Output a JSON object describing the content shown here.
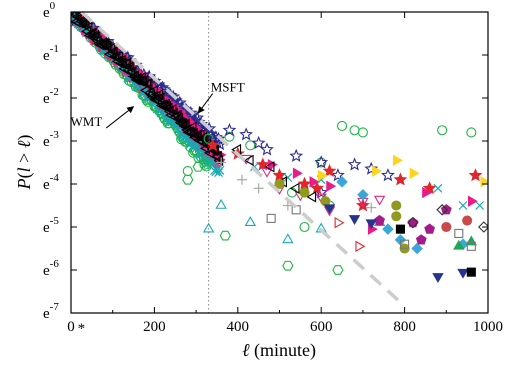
{
  "chart_data": {
    "type": "scatter",
    "x_axis": {
      "label_parts": [
        "ℓ",
        " (minute)"
      ],
      "range": [
        0,
        1000
      ],
      "ticks": [
        {
          "value": 0,
          "label": "0"
        },
        {
          "value": 200,
          "label": "200"
        },
        {
          "value": 400,
          "label": "400"
        },
        {
          "value": 600,
          "label": "600"
        },
        {
          "value": 800,
          "label": "800"
        },
        {
          "value": 1000,
          "label": "1000"
        }
      ],
      "special_marker": {
        "value": 25,
        "label": "*"
      }
    },
    "y_axis": {
      "label_parts": [
        "P",
        "(",
        "l",
        " > ",
        "ℓ",
        ")"
      ],
      "scale": "log_e",
      "range_exponent": [
        -7,
        0
      ],
      "ticks": [
        {
          "exponent": 0,
          "base": "e",
          "sup": "0"
        },
        {
          "exponent": -1,
          "base": "e",
          "sup": "-1"
        },
        {
          "exponent": -2,
          "base": "e",
          "sup": "-2"
        },
        {
          "exponent": -3,
          "base": "e",
          "sup": "-3"
        },
        {
          "exponent": -4,
          "base": "e",
          "sup": "-4"
        },
        {
          "exponent": -5,
          "base": "e",
          "sup": "-5"
        },
        {
          "exponent": -6,
          "base": "e",
          "sup": "-6"
        },
        {
          "exponent": -7,
          "base": "e",
          "sup": "-7"
        }
      ]
    },
    "vertical_line": {
      "x": 330,
      "style": "dotted",
      "color": "#888888"
    },
    "annotations": [
      {
        "text": "MSFT",
        "x": 335,
        "y_exp": -1.85,
        "arrow_to": {
          "x": 305,
          "y_exp": -2.35
        }
      },
      {
        "text": "WMT",
        "x": 75,
        "y_exp": -2.65,
        "arrow_to": {
          "x": 150,
          "y_exp": -2.2
        }
      }
    ],
    "fit_line": {
      "description": "exponential fit",
      "style": "dashed",
      "color": "#cccccc",
      "points": [
        {
          "x": 25,
          "y_exp": 0
        },
        {
          "x": 790,
          "y_exp": -6.75
        }
      ]
    },
    "series": [
      {
        "color": "#1fb544",
        "marker": "circle-open",
        "head_slope": -0.0108,
        "points": [
          [
            330,
            -2.95
          ],
          [
            380,
            -2.9
          ],
          [
            430,
            -3.1
          ],
          [
            650,
            -2.65
          ],
          [
            680,
            -2.75
          ],
          [
            700,
            -2.8
          ],
          [
            890,
            -2.75
          ],
          [
            960,
            -2.8
          ],
          [
            600,
            -3.5
          ],
          [
            530,
            -4.2
          ],
          [
            620,
            -4.5
          ],
          [
            560,
            -5.0
          ],
          [
            320,
            -3.55
          ],
          [
            280,
            -3.7
          ]
        ]
      },
      {
        "color": "#1fb544",
        "marker": "hexagon-open",
        "points": [
          [
            305,
            -3.6
          ],
          [
            370,
            -5.2
          ],
          [
            520,
            -5.9
          ],
          [
            640,
            -6.0
          ],
          [
            280,
            -3.9
          ]
        ]
      },
      {
        "color": "#29288f",
        "marker": "star-open",
        "head_slope": -0.0085,
        "points": [
          [
            380,
            -2.75
          ],
          [
            420,
            -2.85
          ],
          [
            450,
            -3.05
          ],
          [
            470,
            -3.2
          ],
          [
            540,
            -3.35
          ],
          [
            600,
            -3.5
          ],
          [
            640,
            -3.8
          ],
          [
            680,
            -3.55
          ],
          [
            720,
            -3.65
          ],
          [
            760,
            -3.8
          ],
          [
            600,
            -4.2
          ]
        ]
      },
      {
        "color": "#e0262b",
        "marker": "star-filled",
        "head_slope": -0.0095,
        "points": [
          [
            340,
            -3.1
          ],
          [
            400,
            -3.3
          ],
          [
            460,
            -3.55
          ],
          [
            500,
            -3.8
          ],
          [
            560,
            -4.0
          ],
          [
            590,
            -4.1
          ],
          [
            620,
            -3.7
          ],
          [
            700,
            -4.5
          ],
          [
            790,
            -3.9
          ],
          [
            860,
            -4.1
          ],
          [
            970,
            -3.8
          ]
        ]
      },
      {
        "color": "#d42c8a",
        "marker": "triangle-down-open",
        "head_slope": -0.01,
        "points": [
          [
            420,
            -3.4
          ],
          [
            470,
            -3.7
          ],
          [
            500,
            -4.1
          ],
          [
            550,
            -4.25
          ],
          [
            600,
            -4.3
          ],
          [
            700,
            -4.4
          ],
          [
            740,
            -4.35
          ],
          [
            620,
            -4.6
          ]
        ]
      },
      {
        "color": "#e81d88",
        "marker": "triangle-right-filled",
        "head_slope": -0.0093,
        "points": [
          [
            480,
            -3.55
          ],
          [
            540,
            -3.75
          ],
          [
            580,
            -3.95
          ],
          [
            620,
            -4.05
          ],
          [
            850,
            -4.2
          ],
          [
            960,
            -4.4
          ],
          [
            720,
            -5.05
          ]
        ]
      },
      {
        "color": "#1aa9b1",
        "marker": "x",
        "head_slope": -0.0105,
        "points": [
          [
            440,
            -3.6
          ],
          [
            520,
            -3.85
          ],
          [
            600,
            -3.9
          ],
          [
            880,
            -4.1
          ],
          [
            940,
            -4.5
          ],
          [
            980,
            -4.5
          ]
        ]
      },
      {
        "color": "#1aa9b1",
        "marker": "triangle-up-open",
        "points": [
          [
            360,
            -4.5
          ],
          [
            430,
            -4.9
          ],
          [
            600,
            -5.05
          ],
          [
            330,
            -5.05
          ],
          [
            520,
            -5.3
          ],
          [
            740,
            -4.9
          ]
        ]
      },
      {
        "color": "#000000",
        "marker": "triangle-left-open",
        "head_slope": -0.0095,
        "points": [
          [
            400,
            -3.2
          ],
          [
            430,
            -3.45
          ],
          [
            480,
            -3.6
          ],
          [
            510,
            -3.95
          ],
          [
            540,
            -4.1
          ],
          [
            580,
            -4.3
          ]
        ]
      },
      {
        "color": "#3aa7d9",
        "marker": "diamond-filled",
        "points": [
          [
            650,
            -3.95
          ],
          [
            700,
            -4.25
          ],
          [
            760,
            -5.05
          ],
          [
            790,
            -5.3
          ],
          [
            830,
            -5.5
          ],
          [
            940,
            -5.4
          ]
        ]
      },
      {
        "color": "#8f9a1f",
        "marker": "circle-filled",
        "points": [
          [
            500,
            -4.0
          ],
          [
            560,
            -4.2
          ],
          [
            610,
            -4.4
          ],
          [
            780,
            -4.5
          ],
          [
            780,
            -4.75
          ],
          [
            800,
            -5.5
          ]
        ]
      },
      {
        "color": "#a31d89",
        "marker": "pentagon-filled",
        "points": [
          [
            740,
            -4.85
          ],
          [
            820,
            -4.9
          ],
          [
            840,
            -5.3
          ],
          [
            860,
            -5.05
          ],
          [
            900,
            -4.6
          ]
        ]
      },
      {
        "color": "#ffd41c",
        "marker": "triangle-right-filled",
        "points": [
          [
            600,
            -3.8
          ],
          [
            730,
            -3.7
          ],
          [
            780,
            -3.45
          ],
          [
            820,
            -3.75
          ],
          [
            990,
            -3.95
          ]
        ]
      },
      {
        "color": "#26348b",
        "marker": "triangle-down-filled",
        "points": [
          [
            620,
            -4.55
          ],
          [
            680,
            -4.8
          ],
          [
            720,
            -4.9
          ],
          [
            880,
            -6.15
          ],
          [
            940,
            -6.05
          ]
        ]
      },
      {
        "color": "#20a45a",
        "marker": "triangle-up-filled",
        "points": [
          [
            930,
            -5.45
          ],
          [
            960,
            -5.35
          ]
        ]
      },
      {
        "color": "#000000",
        "marker": "square-filled",
        "points": [
          [
            790,
            -5.05
          ],
          [
            960,
            -6.05
          ]
        ]
      },
      {
        "color": "#777777",
        "marker": "square-open",
        "points": [
          [
            480,
            -4.8
          ],
          [
            540,
            -4.6
          ],
          [
            800,
            -5.4
          ],
          [
            930,
            -5.15
          ],
          [
            960,
            -5.45
          ]
        ]
      },
      {
        "color": "#333333",
        "marker": "diamond-open",
        "points": [
          [
            820,
            -4.9
          ],
          [
            890,
            -4.6
          ],
          [
            990,
            -5.0
          ]
        ]
      },
      {
        "color": "#e0262b",
        "marker": "triangle-right-open",
        "points": [
          [
            640,
            -4.9
          ],
          [
            690,
            -5.45
          ]
        ]
      },
      {
        "color": "#c84a4a",
        "marker": "circle-filled",
        "points": [
          [
            900,
            -5.0
          ],
          [
            950,
            -4.85
          ]
        ]
      },
      {
        "color": "#a8a8a8",
        "marker": "plus",
        "points": [
          [
            360,
            -3.5
          ],
          [
            410,
            -3.9
          ],
          [
            450,
            -4.1
          ],
          [
            520,
            -4.5
          ],
          [
            720,
            -4.55
          ]
        ]
      }
    ]
  }
}
